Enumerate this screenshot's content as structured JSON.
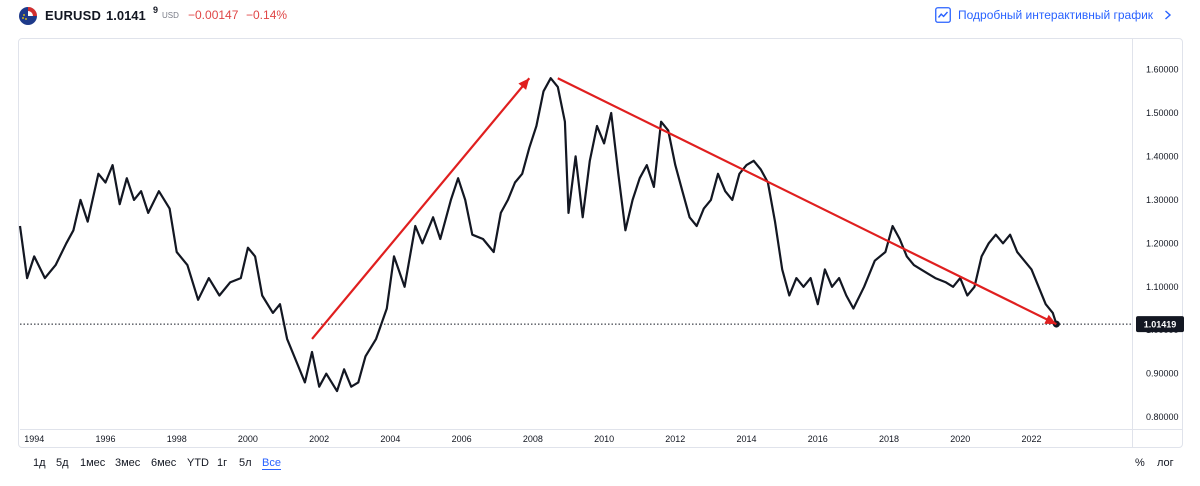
{
  "header": {
    "symbol": "EURUSD",
    "price_main": "1.0141",
    "price_sup": "9",
    "currency": "USD",
    "change": "−0.00147",
    "change_pct": "−0.14%",
    "detail_link": "Подробный интерактивный график",
    "logo_icon": "flag-eu-us-icon",
    "link_icon": "line-chart-icon",
    "chevron_icon": "chevron-right-icon"
  },
  "ranges": [
    "1д",
    "5д",
    "1мес",
    "3мес",
    "6мес",
    "YTD",
    "1г",
    "5л",
    "Все"
  ],
  "active_range": "Все",
  "scale_buttons": {
    "percent": "%",
    "log": "лог"
  },
  "colors": {
    "line": "#131722",
    "arrow": "#e01f1f",
    "accent": "#2962ff",
    "negative": "#e04646"
  },
  "chart_data": {
    "type": "line",
    "title": "",
    "xlabel": "",
    "ylabel": "",
    "x_ticks": [
      "1994",
      "1996",
      "1998",
      "2000",
      "2002",
      "2004",
      "2006",
      "2008",
      "2010",
      "2012",
      "2014",
      "2016",
      "2018",
      "2020",
      "2022"
    ],
    "y_ticks": [
      "0.80000",
      "0.90000",
      "1.00000",
      "1.10000",
      "1.20000",
      "1.30000",
      "1.40000",
      "1.50000",
      "1.60000"
    ],
    "xlim": [
      1993.6,
      2023.7
    ],
    "ylim": [
      0.775,
      1.645
    ],
    "last_value": 1.01419,
    "last_label": "1.01419",
    "grid": false,
    "series": [
      {
        "points": [
          [
            1993.6,
            1.24
          ],
          [
            1993.8,
            1.12
          ],
          [
            1994.0,
            1.17
          ],
          [
            1994.3,
            1.12
          ],
          [
            1994.6,
            1.15
          ],
          [
            1994.9,
            1.2
          ],
          [
            1995.1,
            1.23
          ],
          [
            1995.3,
            1.3
          ],
          [
            1995.5,
            1.25
          ],
          [
            1995.8,
            1.36
          ],
          [
            1996.0,
            1.34
          ],
          [
            1996.2,
            1.38
          ],
          [
            1996.4,
            1.29
          ],
          [
            1996.6,
            1.35
          ],
          [
            1996.8,
            1.3
          ],
          [
            1997.0,
            1.32
          ],
          [
            1997.2,
            1.27
          ],
          [
            1997.5,
            1.32
          ],
          [
            1997.8,
            1.28
          ],
          [
            1998.0,
            1.18
          ],
          [
            1998.3,
            1.15
          ],
          [
            1998.6,
            1.07
          ],
          [
            1998.9,
            1.12
          ],
          [
            1999.2,
            1.08
          ],
          [
            1999.5,
            1.11
          ],
          [
            1999.8,
            1.12
          ],
          [
            2000.0,
            1.19
          ],
          [
            2000.2,
            1.17
          ],
          [
            2000.4,
            1.08
          ],
          [
            2000.7,
            1.04
          ],
          [
            2000.9,
            1.06
          ],
          [
            2001.1,
            0.98
          ],
          [
            2001.4,
            0.92
          ],
          [
            2001.6,
            0.88
          ],
          [
            2001.8,
            0.95
          ],
          [
            2002.0,
            0.87
          ],
          [
            2002.2,
            0.9
          ],
          [
            2002.5,
            0.86
          ],
          [
            2002.7,
            0.91
          ],
          [
            2002.9,
            0.87
          ],
          [
            2003.1,
            0.88
          ],
          [
            2003.3,
            0.94
          ],
          [
            2003.6,
            0.98
          ],
          [
            2003.9,
            1.05
          ],
          [
            2004.1,
            1.17
          ],
          [
            2004.4,
            1.1
          ],
          [
            2004.7,
            1.24
          ],
          [
            2004.9,
            1.2
          ],
          [
            2005.2,
            1.26
          ],
          [
            2005.4,
            1.21
          ],
          [
            2005.7,
            1.3
          ],
          [
            2005.9,
            1.35
          ],
          [
            2006.1,
            1.3
          ],
          [
            2006.3,
            1.22
          ],
          [
            2006.6,
            1.21
          ],
          [
            2006.9,
            1.18
          ],
          [
            2007.1,
            1.27
          ],
          [
            2007.3,
            1.3
          ],
          [
            2007.5,
            1.34
          ],
          [
            2007.7,
            1.36
          ],
          [
            2007.9,
            1.42
          ],
          [
            2008.1,
            1.47
          ],
          [
            2008.3,
            1.55
          ],
          [
            2008.5,
            1.58
          ],
          [
            2008.7,
            1.56
          ],
          [
            2008.9,
            1.48
          ],
          [
            2009.0,
            1.27
          ],
          [
            2009.2,
            1.4
          ],
          [
            2009.4,
            1.26
          ],
          [
            2009.6,
            1.39
          ],
          [
            2009.8,
            1.47
          ],
          [
            2010.0,
            1.43
          ],
          [
            2010.2,
            1.5
          ],
          [
            2010.4,
            1.36
          ],
          [
            2010.6,
            1.23
          ],
          [
            2010.8,
            1.3
          ],
          [
            2011.0,
            1.35
          ],
          [
            2011.2,
            1.38
          ],
          [
            2011.4,
            1.33
          ],
          [
            2011.6,
            1.48
          ],
          [
            2011.8,
            1.46
          ],
          [
            2012.0,
            1.38
          ],
          [
            2012.2,
            1.32
          ],
          [
            2012.4,
            1.26
          ],
          [
            2012.6,
            1.24
          ],
          [
            2012.8,
            1.28
          ],
          [
            2013.0,
            1.3
          ],
          [
            2013.2,
            1.36
          ],
          [
            2013.4,
            1.32
          ],
          [
            2013.6,
            1.3
          ],
          [
            2013.8,
            1.36
          ],
          [
            2014.0,
            1.38
          ],
          [
            2014.2,
            1.39
          ],
          [
            2014.4,
            1.37
          ],
          [
            2014.6,
            1.34
          ],
          [
            2014.8,
            1.25
          ],
          [
            2015.0,
            1.14
          ],
          [
            2015.2,
            1.08
          ],
          [
            2015.4,
            1.12
          ],
          [
            2015.6,
            1.1
          ],
          [
            2015.8,
            1.12
          ],
          [
            2016.0,
            1.06
          ],
          [
            2016.2,
            1.14
          ],
          [
            2016.4,
            1.1
          ],
          [
            2016.6,
            1.12
          ],
          [
            2016.8,
            1.08
          ],
          [
            2017.0,
            1.05
          ],
          [
            2017.3,
            1.1
          ],
          [
            2017.6,
            1.16
          ],
          [
            2017.9,
            1.18
          ],
          [
            2018.1,
            1.24
          ],
          [
            2018.3,
            1.21
          ],
          [
            2018.5,
            1.17
          ],
          [
            2018.7,
            1.15
          ],
          [
            2018.9,
            1.14
          ],
          [
            2019.1,
            1.13
          ],
          [
            2019.3,
            1.12
          ],
          [
            2019.6,
            1.11
          ],
          [
            2019.8,
            1.1
          ],
          [
            2020.0,
            1.12
          ],
          [
            2020.2,
            1.08
          ],
          [
            2020.4,
            1.1
          ],
          [
            2020.6,
            1.17
          ],
          [
            2020.8,
            1.2
          ],
          [
            2021.0,
            1.22
          ],
          [
            2021.2,
            1.2
          ],
          [
            2021.4,
            1.22
          ],
          [
            2021.6,
            1.18
          ],
          [
            2021.8,
            1.16
          ],
          [
            2022.0,
            1.14
          ],
          [
            2022.2,
            1.1
          ],
          [
            2022.4,
            1.06
          ],
          [
            2022.6,
            1.04
          ],
          [
            2022.7,
            1.01419
          ]
        ]
      }
    ],
    "annotations": [
      {
        "type": "arrow",
        "from": [
          2001.8,
          0.98
        ],
        "to": [
          2007.9,
          1.58
        ]
      },
      {
        "type": "arrow",
        "from": [
          2008.7,
          1.58
        ],
        "to": [
          2022.7,
          1.01419
        ]
      }
    ]
  }
}
